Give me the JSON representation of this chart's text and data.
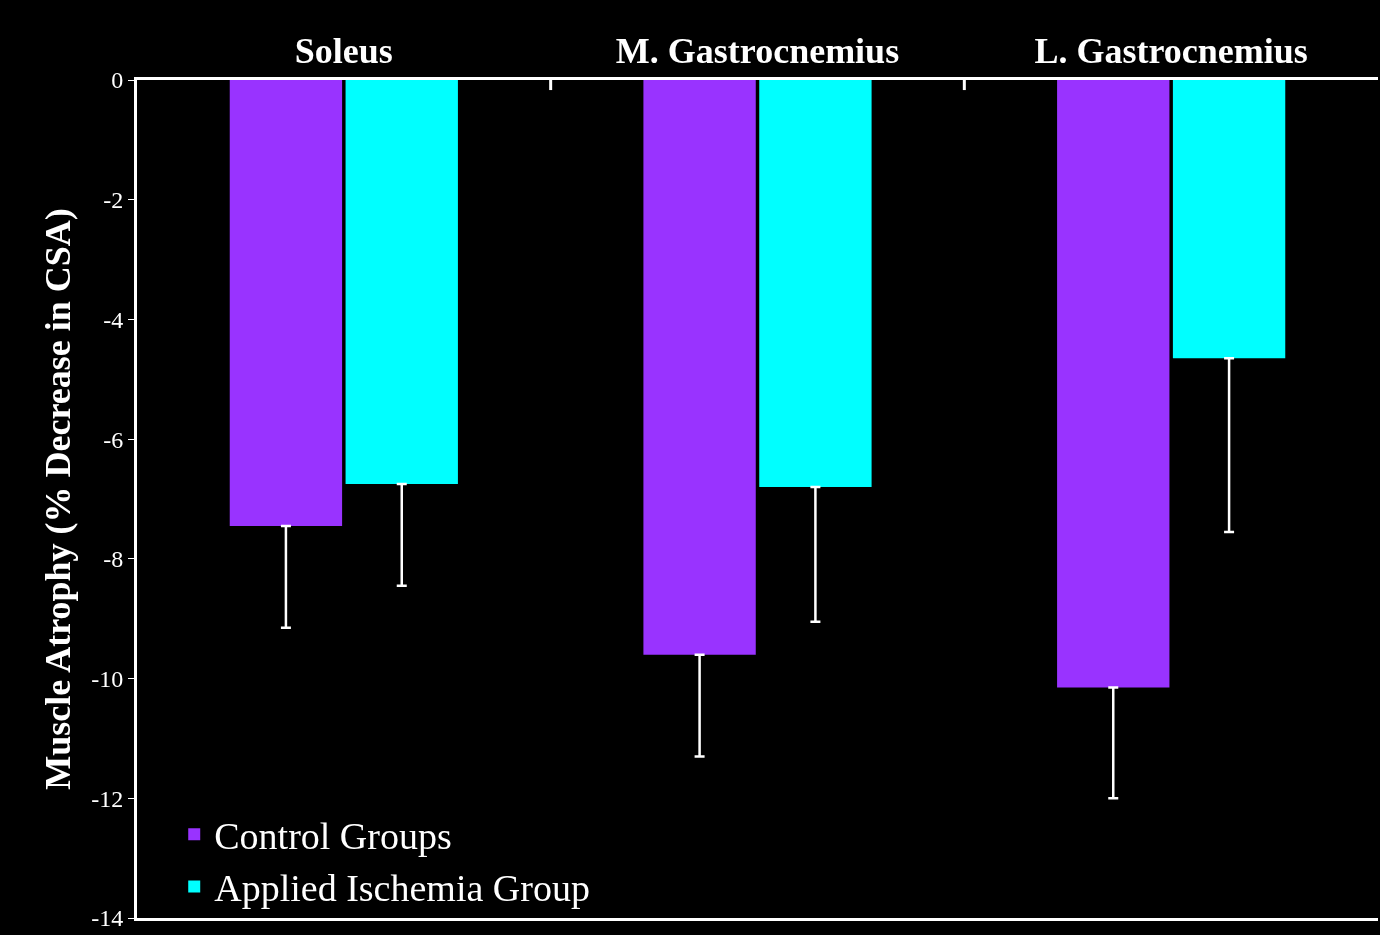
{
  "chart_data": {
    "type": "bar",
    "ylabel": "Muscle Atrophy (% Decrease in CSA)",
    "categories": [
      "Soleus",
      "M. Gastrocnemius",
      "L. Gastrocnemius"
    ],
    "series": [
      {
        "name": "Control Groups",
        "color": "#9933ff",
        "values": [
          -7.45,
          -9.6,
          -10.15
        ],
        "errors": [
          [
            -9.15,
            -7.45
          ],
          [
            -11.3,
            -9.6
          ],
          [
            -12.0,
            -10.15
          ]
        ]
      },
      {
        "name": "Applied Ischemia Group",
        "color": "#00ffff",
        "values": [
          -6.75,
          -6.8,
          -4.65
        ],
        "errors": [
          [
            -8.45,
            -6.75
          ],
          [
            -9.05,
            -6.8
          ],
          [
            -7.55,
            -4.65
          ]
        ]
      }
    ],
    "ylim": [
      -14,
      0
    ],
    "yticks": [
      0,
      -2,
      -4,
      -6,
      -8,
      -10,
      -12,
      -14
    ],
    "grid": false,
    "legend": "bottom left"
  }
}
